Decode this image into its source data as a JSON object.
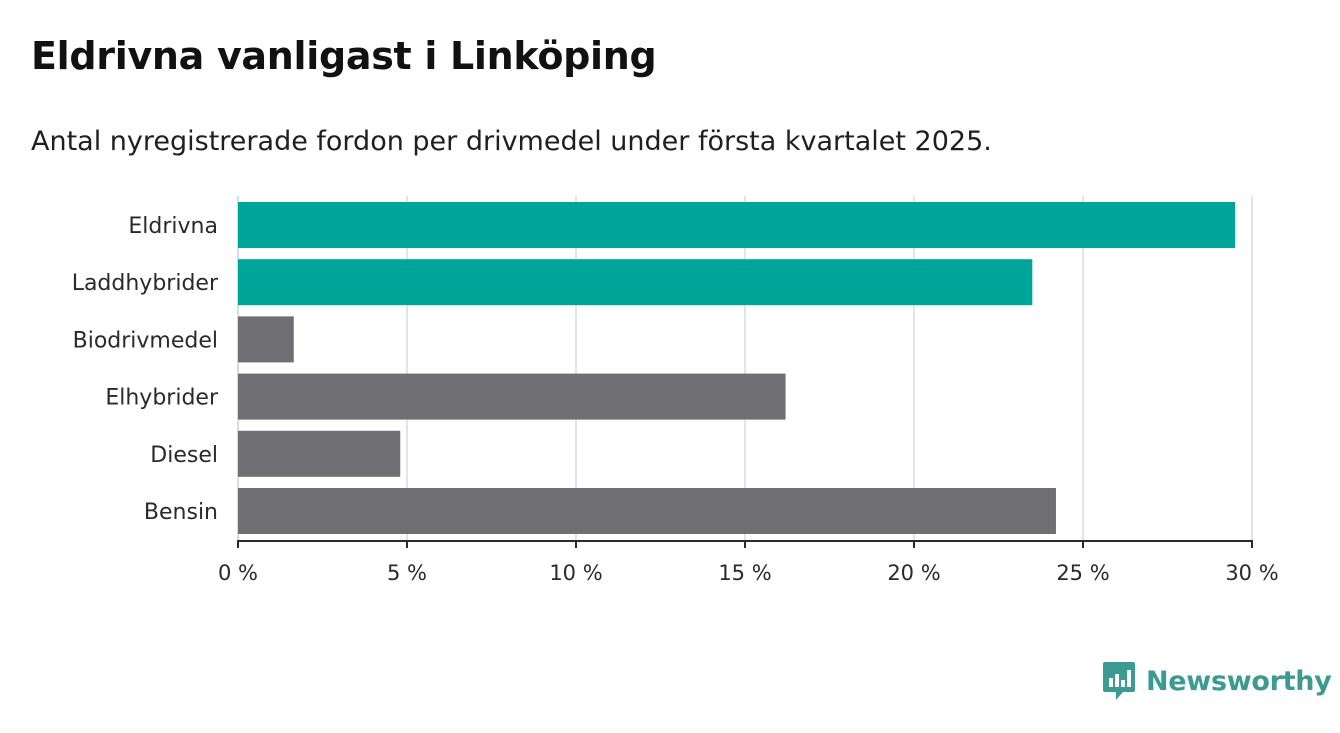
{
  "header": {
    "title": "Eldrivna vanligast i Linköping",
    "subtitle": "Antal nyregistrerade fordon per drivmedel under första kvartalet 2025."
  },
  "chart_data": {
    "type": "bar",
    "orientation": "horizontal",
    "categories": [
      "Eldrivna",
      "Laddhybrider",
      "Biodrivmedel",
      "Elhybrider",
      "Diesel",
      "Bensin"
    ],
    "values": [
      29.5,
      23.5,
      1.65,
      16.2,
      4.8,
      24.2
    ],
    "colors": [
      "#00a59a",
      "#00a59a",
      "#6e6e73",
      "#6e6e73",
      "#6e6e73",
      "#6e6e73"
    ],
    "xlim": [
      0,
      30
    ],
    "xticks": [
      0,
      5,
      10,
      15,
      20,
      25,
      30
    ],
    "xtick_labels": [
      "0 %",
      "5 %",
      "10 %",
      "15 %",
      "20 %",
      "25 %",
      "30 %"
    ],
    "grid": true
  },
  "brand": {
    "name": "Newsworthy",
    "icon": "newsworthy-logo-icon",
    "color": "#3d9a93"
  }
}
